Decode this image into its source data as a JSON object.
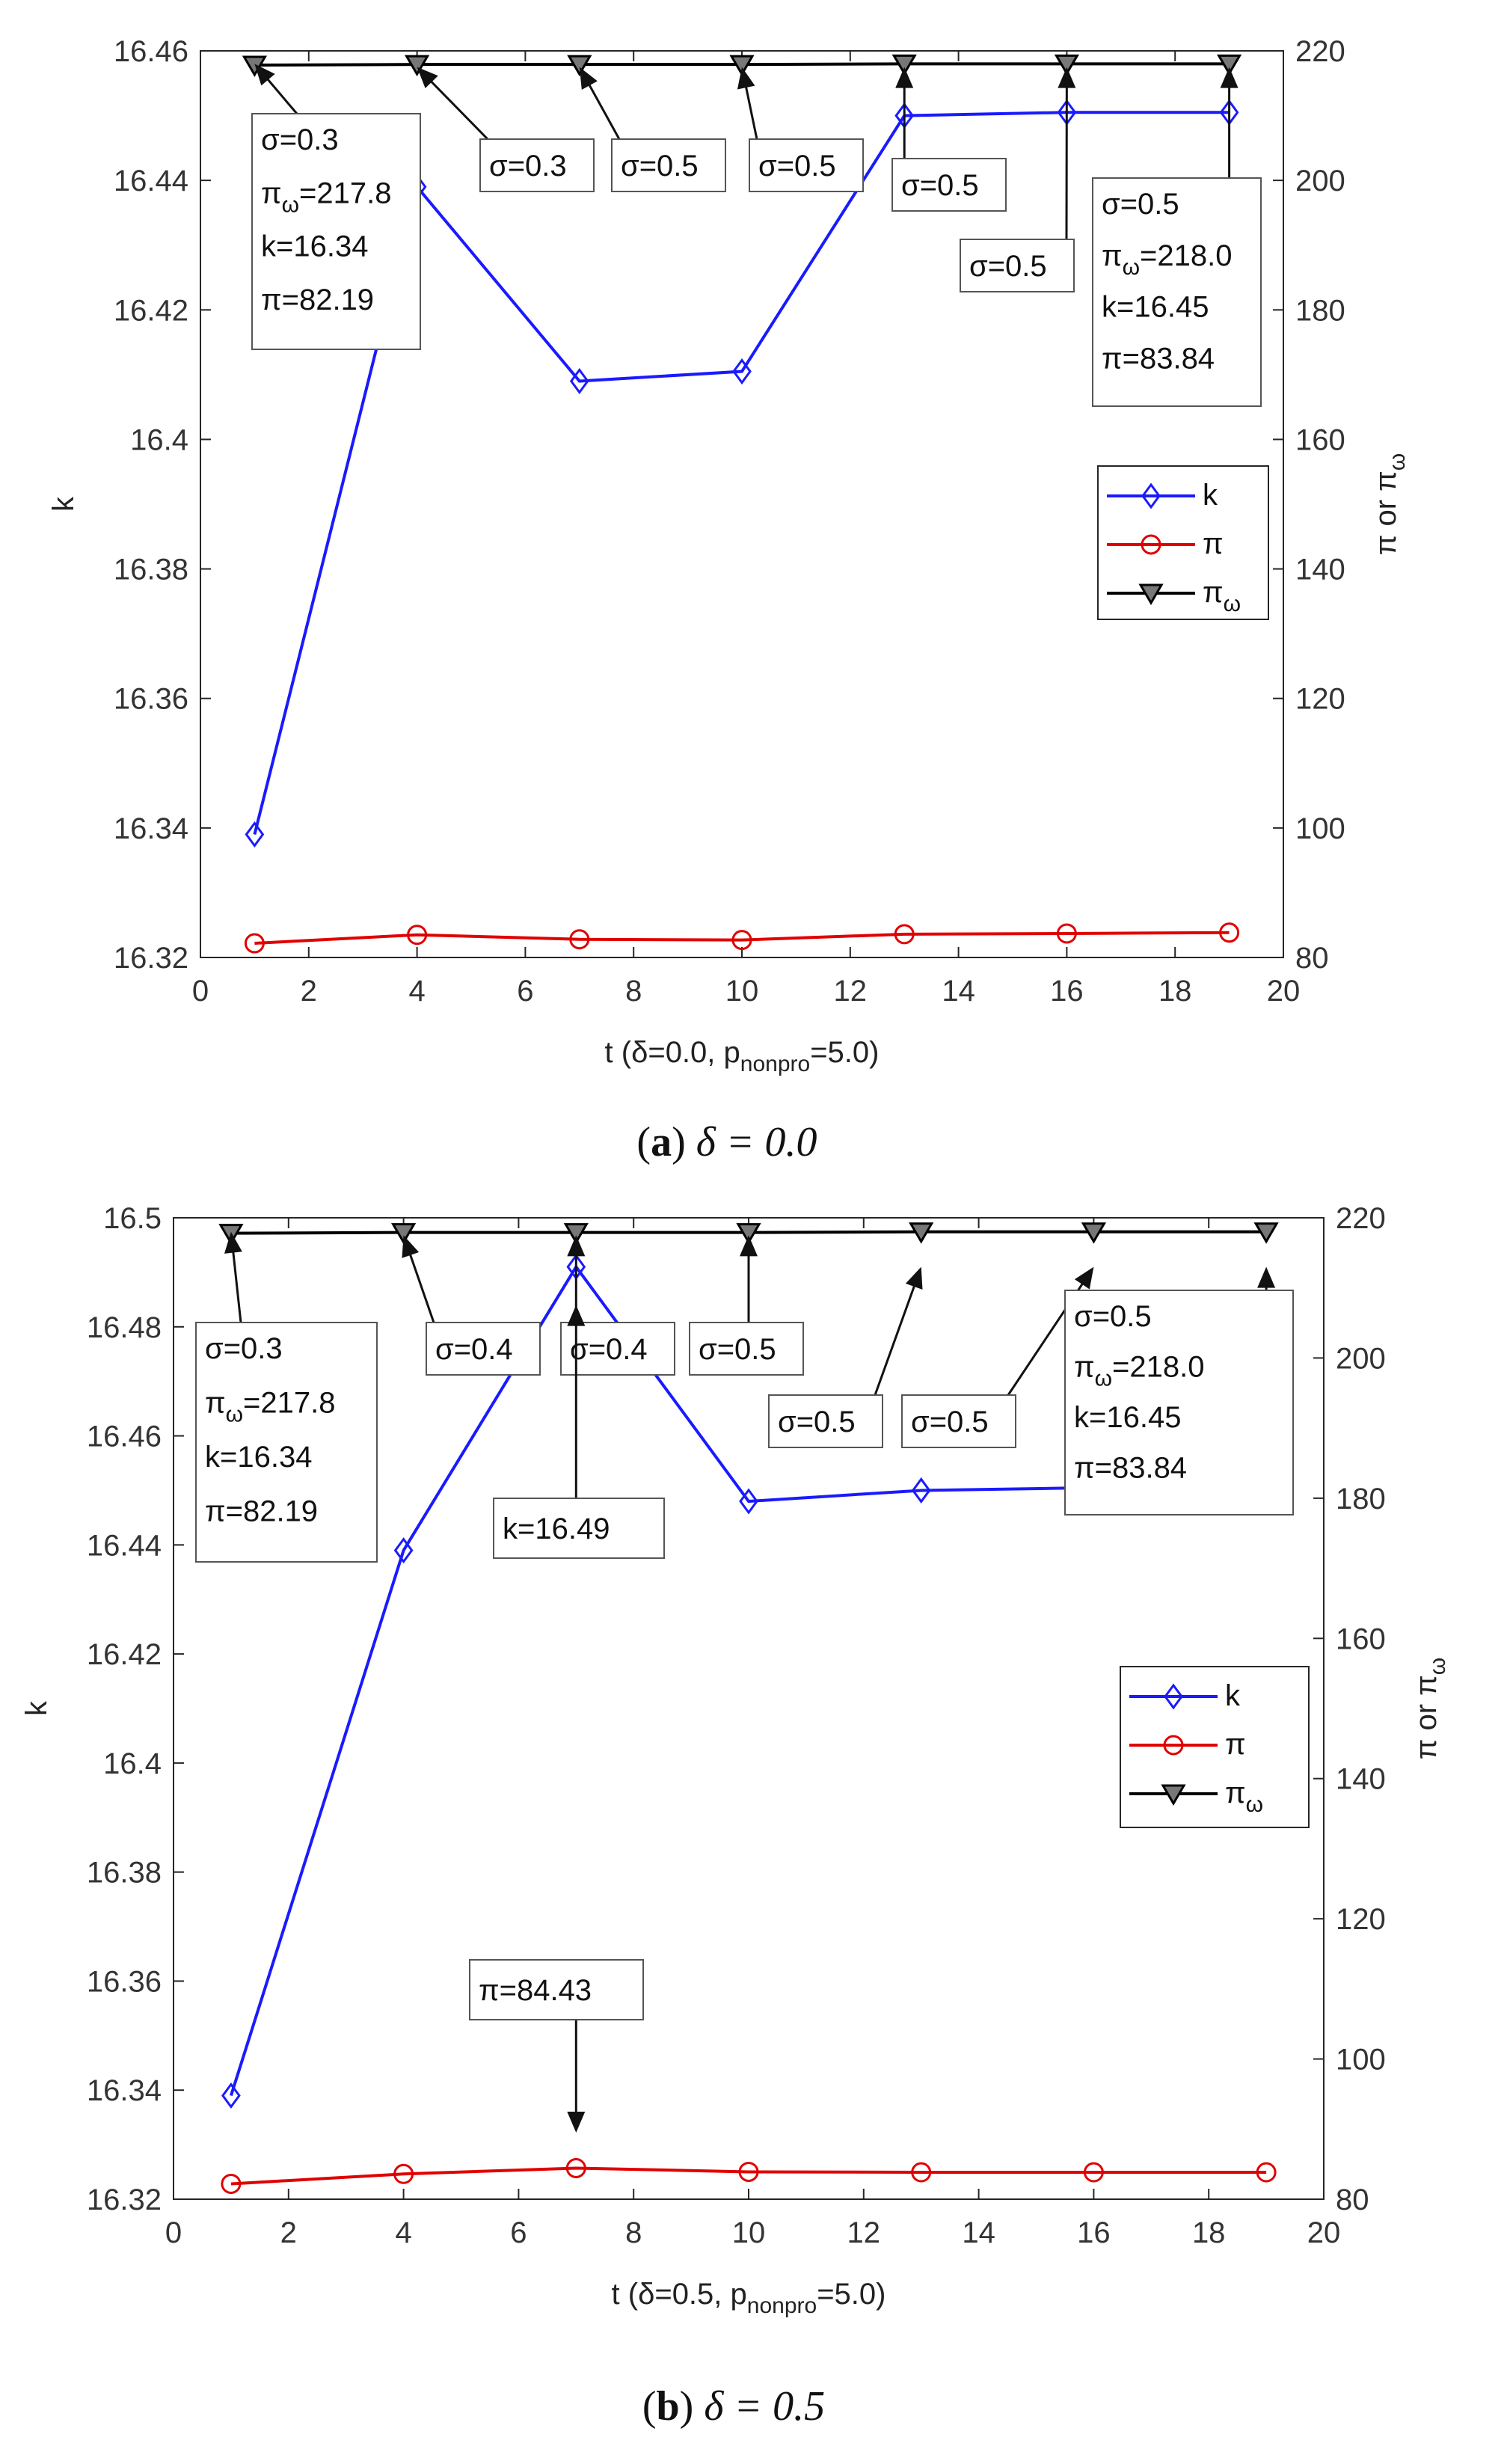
{
  "chart_data": [
    {
      "type": "line",
      "caption": {
        "label": "a",
        "math": "δ = 0.0"
      },
      "xlabel": {
        "pre": "t (δ=0.0, p",
        "sub": "nonpro",
        "post": "=5.0)"
      },
      "ylabel_left": "k",
      "ylabel_right": {
        "pre": "π or π",
        "sub": "ω"
      },
      "xlim": [
        0,
        20
      ],
      "xticks": [
        0,
        2,
        4,
        6,
        8,
        10,
        12,
        14,
        16,
        18,
        20
      ],
      "ylim_left": [
        16.32,
        16.46
      ],
      "yticks_left": [
        "16.32",
        "16.34",
        "16.36",
        "16.38",
        "16.4",
        "16.42",
        "16.44",
        "16.46"
      ],
      "ylim_right": [
        80,
        220
      ],
      "yticks_right": [
        80,
        100,
        120,
        140,
        160,
        180,
        200,
        220
      ],
      "x": [
        1,
        4,
        7,
        10,
        13,
        16,
        19
      ],
      "series": [
        {
          "name": "k",
          "axis": "left",
          "color": "#1a1aff",
          "marker": "diamond",
          "values": [
            16.339,
            16.439,
            16.409,
            16.4105,
            16.45,
            16.4505,
            16.4505
          ]
        },
        {
          "name": "π",
          "axis": "right",
          "color": "#e00000",
          "marker": "circle",
          "values": [
            82.19,
            83.5,
            82.8,
            82.7,
            83.6,
            83.7,
            83.84
          ]
        },
        {
          "name": "π",
          "sub": "ω",
          "axis": "right",
          "color": "#000000",
          "marker": "triangle-down",
          "values": [
            217.8,
            217.9,
            217.9,
            217.9,
            218.0,
            218.0,
            218.0
          ]
        }
      ],
      "legend": "right-middle",
      "annotations": [
        {
          "lines": [
            {
              "t": "σ=0.3"
            },
            {
              "t": "π",
              "sub": "ω",
              "post": "=217.8"
            },
            {
              "t": "k=16.34"
            },
            {
              "t": "π=82.19"
            }
          ],
          "target": [
            1,
            218.0
          ]
        },
        {
          "lines": [
            {
              "t": "σ=0.3"
            }
          ],
          "target": [
            4,
            217.5
          ]
        },
        {
          "lines": [
            {
              "t": "σ=0.5"
            }
          ],
          "target": [
            7,
            217.5
          ]
        },
        {
          "lines": [
            {
              "t": "σ=0.5"
            }
          ],
          "target": [
            10,
            217.5
          ]
        },
        {
          "lines": [
            {
              "t": "σ=0.5"
            }
          ],
          "target": [
            13,
            217.5
          ]
        },
        {
          "lines": [
            {
              "t": "σ=0.5"
            }
          ],
          "target": [
            16,
            217.5
          ]
        },
        {
          "lines": [
            {
              "t": "σ=0.5"
            },
            {
              "t": "π",
              "sub": "ω",
              "post": "=218.0"
            },
            {
              "t": "k=16.45"
            },
            {
              "t": "π=83.84"
            }
          ],
          "target": [
            19,
            217.5
          ]
        }
      ]
    },
    {
      "type": "line",
      "caption": {
        "label": "b",
        "math": "δ = 0.5"
      },
      "xlabel": {
        "pre": "t (δ=0.5, p",
        "sub": "nonpro",
        "post": "=5.0)"
      },
      "ylabel_left": "k",
      "ylabel_right": {
        "pre": "π or π",
        "sub": "ω"
      },
      "xlim": [
        0,
        20
      ],
      "xticks": [
        0,
        2,
        4,
        6,
        8,
        10,
        12,
        14,
        16,
        18,
        20
      ],
      "ylim_left": [
        16.32,
        16.5
      ],
      "yticks_left": [
        "16.32",
        "16.34",
        "16.36",
        "16.38",
        "16.4",
        "16.42",
        "16.44",
        "16.46",
        "16.48",
        "16.5"
      ],
      "ylim_right": [
        80,
        220
      ],
      "yticks_right": [
        80,
        100,
        120,
        140,
        160,
        180,
        200,
        220
      ],
      "x": [
        1,
        4,
        7,
        10,
        13,
        16,
        19
      ],
      "series": [
        {
          "name": "k",
          "axis": "left",
          "color": "#1a1aff",
          "marker": "diamond",
          "values": [
            16.339,
            16.439,
            16.491,
            16.448,
            16.45,
            16.4505,
            16.4505
          ]
        },
        {
          "name": "π",
          "axis": "right",
          "color": "#e00000",
          "marker": "circle",
          "values": [
            82.19,
            83.6,
            84.43,
            83.9,
            83.84,
            83.84,
            83.84
          ]
        },
        {
          "name": "π",
          "sub": "ω",
          "axis": "right",
          "color": "#000000",
          "marker": "triangle-down",
          "values": [
            217.8,
            217.9,
            217.9,
            217.9,
            218.0,
            218.0,
            218.0
          ]
        }
      ],
      "legend": "right-middle",
      "annotations": [
        {
          "lines": [
            {
              "t": "σ=0.3"
            },
            {
              "t": "π",
              "sub": "ω",
              "post": "=217.8"
            },
            {
              "t": "k=16.34"
            },
            {
              "t": "π=82.19"
            }
          ],
          "target": [
            1,
            218.0
          ]
        },
        {
          "lines": [
            {
              "t": "σ=0.4"
            }
          ],
          "target": [
            4,
            217.5
          ]
        },
        {
          "lines": [
            {
              "t": "σ=0.4"
            }
          ],
          "target": [
            7,
            217.5
          ]
        },
        {
          "lines": [
            {
              "t": "σ=0.5"
            }
          ],
          "target": [
            10,
            217.5
          ]
        },
        {
          "lines": [
            {
              "t": "σ=0.5"
            }
          ],
          "target": [
            13,
            213.0
          ]
        },
        {
          "lines": [
            {
              "t": "σ=0.5"
            }
          ],
          "target": [
            16,
            213.0
          ]
        },
        {
          "lines": [
            {
              "t": "σ=0.5"
            },
            {
              "t": "π",
              "sub": "ω",
              "post": "=218.0"
            },
            {
              "t": "k=16.45"
            },
            {
              "t": "π=83.84"
            }
          ],
          "target": [
            19,
            213.0
          ]
        },
        {
          "lines": [
            {
              "t": "k=16.49"
            }
          ],
          "target": [
            7,
            16.484
          ],
          "axis": "left"
        },
        {
          "lines": [
            {
              "t": "π=84.43"
            }
          ],
          "target": [
            7,
            89.5
          ]
        }
      ]
    }
  ]
}
